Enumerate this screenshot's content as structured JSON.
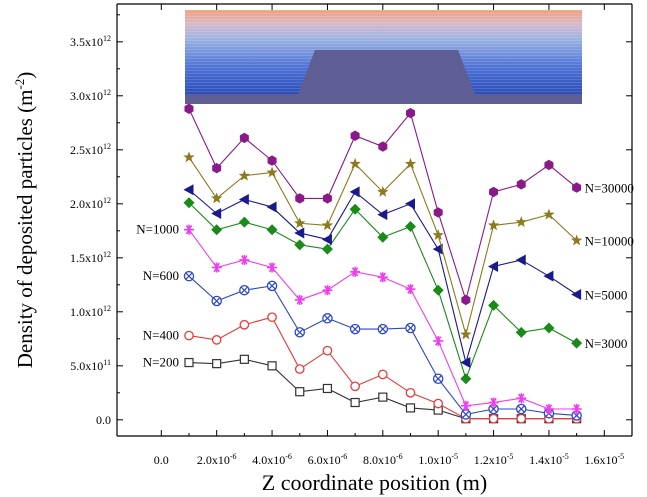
{
  "chart_data": {
    "type": "line",
    "xlabel": "Z coordinate position (m)",
    "ylabel_text": "Density of deposited particles (m",
    "ylabel_sup": "-2",
    "ylabel_close": ")",
    "xlim": [
      -1.6e-06,
      1.7e-05
    ],
    "ylim": [
      -150000000000.0,
      3850000000000.0
    ],
    "x_ticks": [
      {
        "value": 0,
        "mant": "0.0",
        "exp": ""
      },
      {
        "value": 2e-06,
        "mant": "2.0x10",
        "exp": "-6"
      },
      {
        "value": 4e-06,
        "mant": "4.0x10",
        "exp": "-6"
      },
      {
        "value": 6e-06,
        "mant": "6.0x10",
        "exp": "-6"
      },
      {
        "value": 8e-06,
        "mant": "8.0x10",
        "exp": "-6"
      },
      {
        "value": 1e-05,
        "mant": "1.0x10",
        "exp": "-5"
      },
      {
        "value": 1.2e-05,
        "mant": "1.2x10",
        "exp": "-5"
      },
      {
        "value": 1.4e-05,
        "mant": "1.4x10",
        "exp": "-5"
      },
      {
        "value": 1.6e-05,
        "mant": "1.6x10",
        "exp": "-5"
      }
    ],
    "y_ticks": [
      {
        "value": 0,
        "mant": "0.0",
        "exp": ""
      },
      {
        "value": 500000000000.0,
        "mant": "5.0x10",
        "exp": "11"
      },
      {
        "value": 1000000000000.0,
        "mant": "1.0x10",
        "exp": "12"
      },
      {
        "value": 1500000000000.0,
        "mant": "1.5x10",
        "exp": "12"
      },
      {
        "value": 2000000000000.0,
        "mant": "2.0x10",
        "exp": "12"
      },
      {
        "value": 2500000000000.0,
        "mant": "2.5x10",
        "exp": "12"
      },
      {
        "value": 3000000000000.0,
        "mant": "3.0x10",
        "exp": "12"
      },
      {
        "value": 3500000000000.0,
        "mant": "3.5x10",
        "exp": "12"
      }
    ],
    "x": [
      1e-06,
      2e-06,
      3e-06,
      4e-06,
      5e-06,
      6e-06,
      7e-06,
      8e-06,
      9e-06,
      1e-05,
      1.1e-05,
      1.2e-05,
      1.3e-05,
      1.4e-05,
      1.5e-05
    ],
    "series": [
      {
        "name": "N=200",
        "color": "#333333",
        "marker": "square",
        "values": [
          530000000000.0,
          520000000000.0,
          560000000000.0,
          500000000000.0,
          260000000000.0,
          290000000000.0,
          160000000000.0,
          210000000000.0,
          110000000000.0,
          90000000000.0,
          10000000000.0,
          10000000000.0,
          10000000000.0,
          10000000000.0,
          10000000000.0
        ]
      },
      {
        "name": "N=400",
        "color": "#e83a3a",
        "marker": "circle",
        "values": [
          780000000000.0,
          740000000000.0,
          880000000000.0,
          950000000000.0,
          470000000000.0,
          640000000000.0,
          310000000000.0,
          420000000000.0,
          250000000000.0,
          150000000000.0,
          10000000000.0,
          10000000000.0,
          10000000000.0,
          10000000000.0,
          10000000000.0
        ]
      },
      {
        "name": "N=600",
        "color": "#2b47c4",
        "marker": "circle-x",
        "values": [
          1330000000000.0,
          1100000000000.0,
          1200000000000.0,
          1240000000000.0,
          810000000000.0,
          940000000000.0,
          840000000000.0,
          840000000000.0,
          850000000000.0,
          380000000000.0,
          50000000000.0,
          100000000000.0,
          100000000000.0,
          60000000000.0,
          40000000000.0
        ]
      },
      {
        "name": "N=1000",
        "color": "#ee3dee",
        "marker": "star",
        "values": [
          1760000000000.0,
          1410000000000.0,
          1480000000000.0,
          1410000000000.0,
          1110000000000.0,
          1200000000000.0,
          1370000000000.0,
          1320000000000.0,
          1210000000000.0,
          730000000000.0,
          130000000000.0,
          160000000000.0,
          200000000000.0,
          100000000000.0,
          100000000000.0
        ]
      },
      {
        "name": "N=3000",
        "color": "#1a8a1a",
        "marker": "diamond",
        "values": [
          2010000000000.0,
          1760000000000.0,
          1830000000000.0,
          1760000000000.0,
          1620000000000.0,
          1580000000000.0,
          1950000000000.0,
          1690000000000.0,
          1790000000000.0,
          1200000000000.0,
          380000000000.0,
          1060000000000.0,
          810000000000.0,
          850000000000.0,
          710000000000.0
        ]
      },
      {
        "name": "N=5000",
        "color": "#1a1a8c",
        "marker": "triangle-left",
        "values": [
          2130000000000.0,
          1910000000000.0,
          2040000000000.0,
          1970000000000.0,
          1730000000000.0,
          1670000000000.0,
          2110000000000.0,
          1900000000000.0,
          2000000000000.0,
          1580000000000.0,
          530000000000.0,
          1420000000000.0,
          1480000000000.0,
          1330000000000.0,
          1160000000000.0
        ]
      },
      {
        "name": "N=10000",
        "color": "#8c7a1e",
        "marker": "star5",
        "values": [
          2430000000000.0,
          2050000000000.0,
          2260000000000.0,
          2290000000000.0,
          1820000000000.0,
          1800000000000.0,
          2370000000000.0,
          2110000000000.0,
          2370000000000.0,
          1710000000000.0,
          790000000000.0,
          1800000000000.0,
          1830000000000.0,
          1900000000000.0,
          1660000000000.0
        ]
      },
      {
        "name": "N=30000",
        "color": "#8a1a8a",
        "marker": "hexagon",
        "values": [
          2880000000000.0,
          2330000000000.0,
          2610000000000.0,
          2400000000000.0,
          2050000000000.0,
          2050000000000.0,
          2630000000000.0,
          2530000000000.0,
          2840000000000.0,
          1920000000000.0,
          1110000000000.0,
          2110000000000.0,
          2180000000000.0,
          2360000000000.0,
          2150000000000.0
        ]
      }
    ]
  }
}
